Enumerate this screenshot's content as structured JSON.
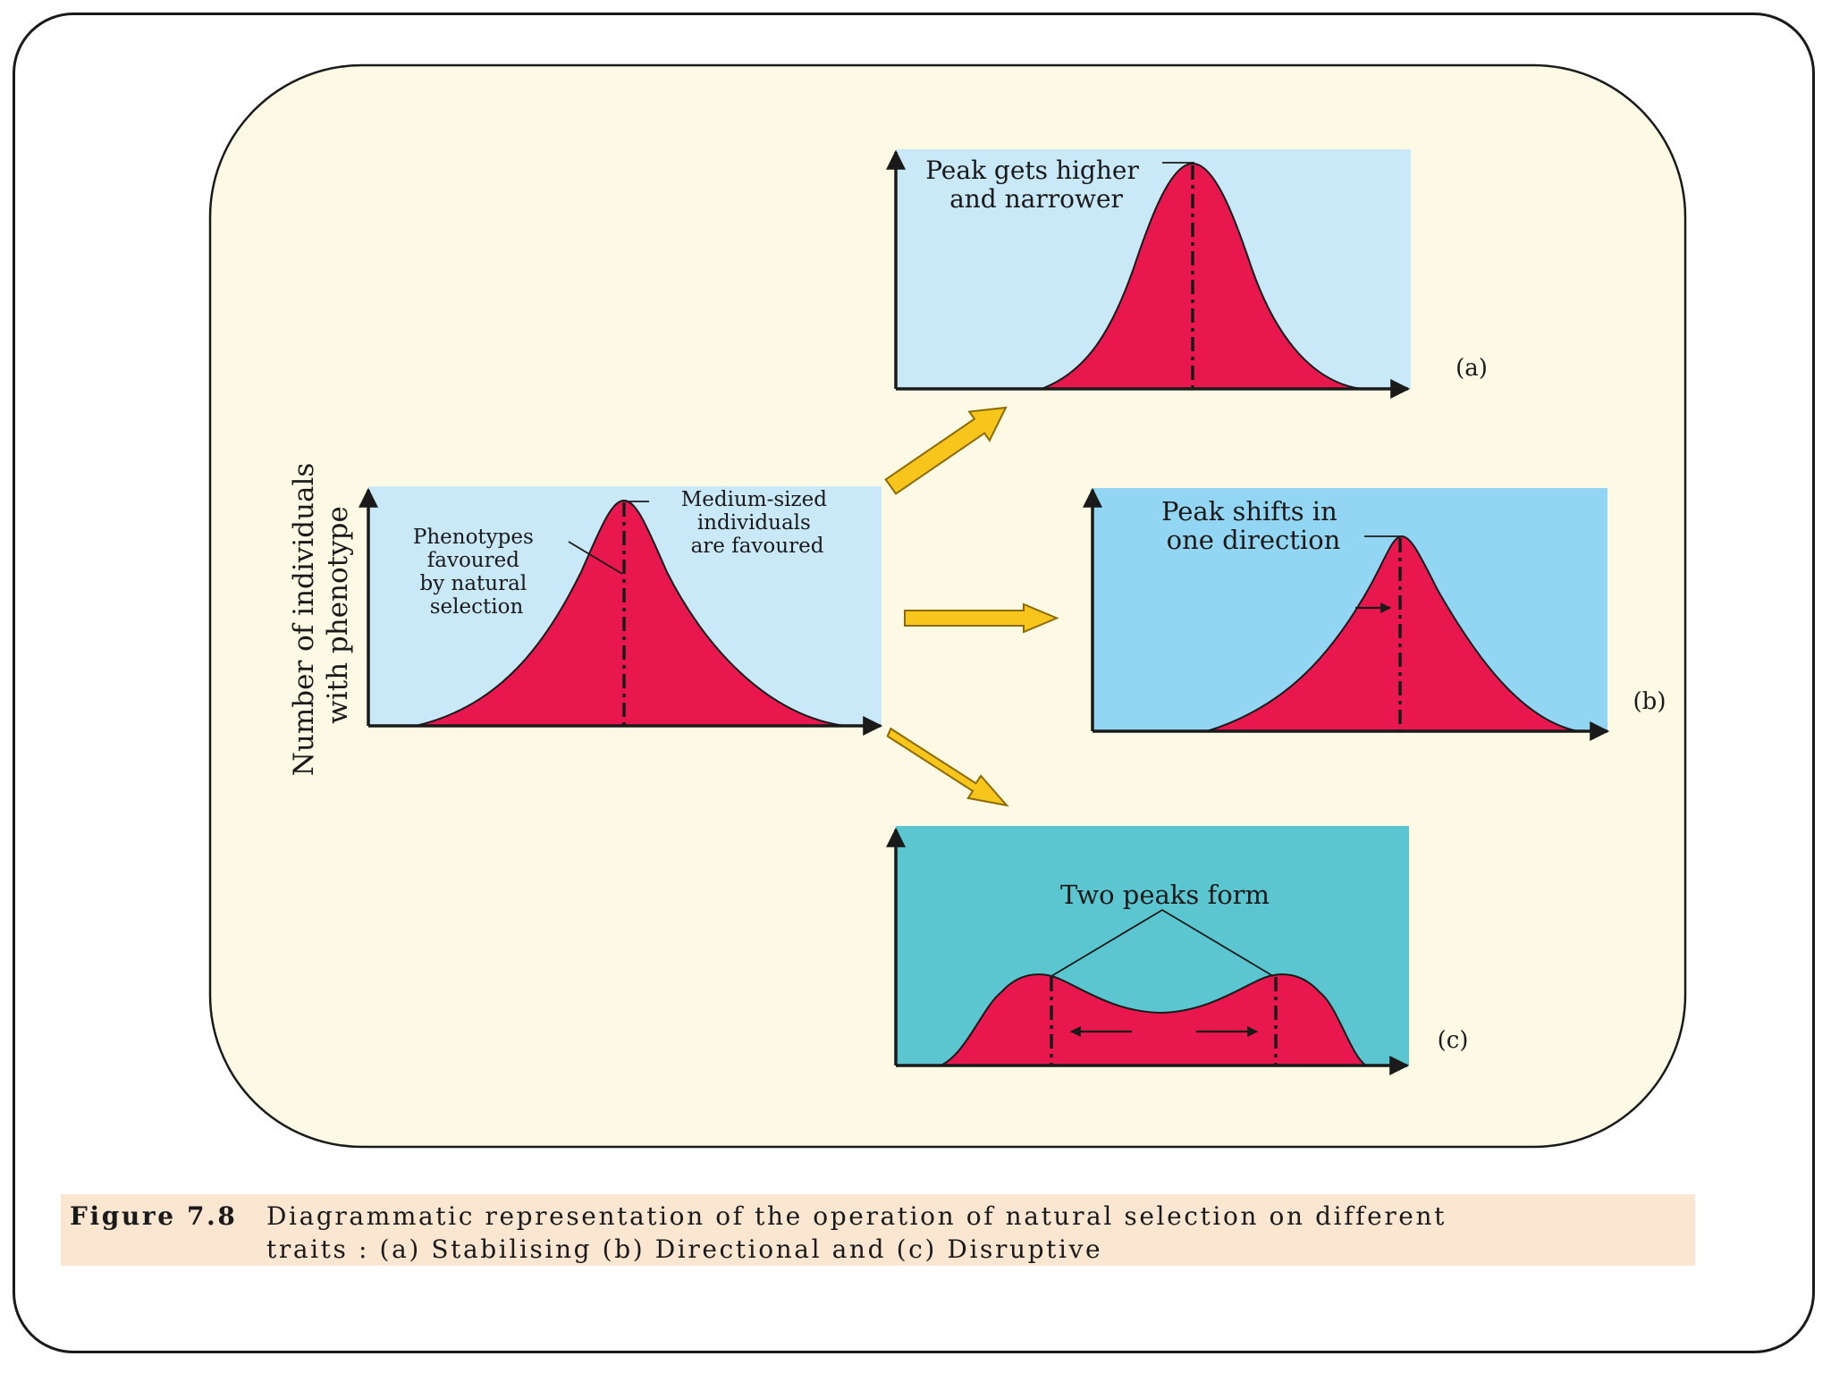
{
  "figure": {
    "y_axis_label_line1": "Number of individuals",
    "y_axis_label_line2": "with phenotype",
    "original": {
      "label_favoured": [
        "Phenotypes",
        "favoured",
        "by natural",
        "selection"
      ],
      "label_medium": [
        "Medium-sized",
        "individuals",
        "are favoured"
      ]
    },
    "panel_a": {
      "tag": "(a)",
      "label": [
        "Peak gets higher",
        "and narrower"
      ]
    },
    "panel_b": {
      "tag": "(b)",
      "label": [
        "Peak shifts in",
        "one direction"
      ]
    },
    "panel_c": {
      "tag": "(c)",
      "label": "Two peaks form"
    }
  },
  "caption": {
    "label": "Figure 7.8",
    "line1": "Diagrammatic representation of the operation of natural selection on different",
    "line2": "traits : (a) Stabilising (b) Directional and (c) Disruptive"
  },
  "colors": {
    "frame_border": "#1a1a1a",
    "rounded_area_bg": "#fcfae4",
    "panel_light_blue": "#c9e8f8",
    "panel_mid_blue": "#93d6f4",
    "panel_teal": "#5bc6d0",
    "curve_fill": "#e8174e",
    "arrow_fill": "#f7c51b",
    "arrow_stroke": "#8c6a00",
    "caption_bg": "#fbe6d2"
  }
}
